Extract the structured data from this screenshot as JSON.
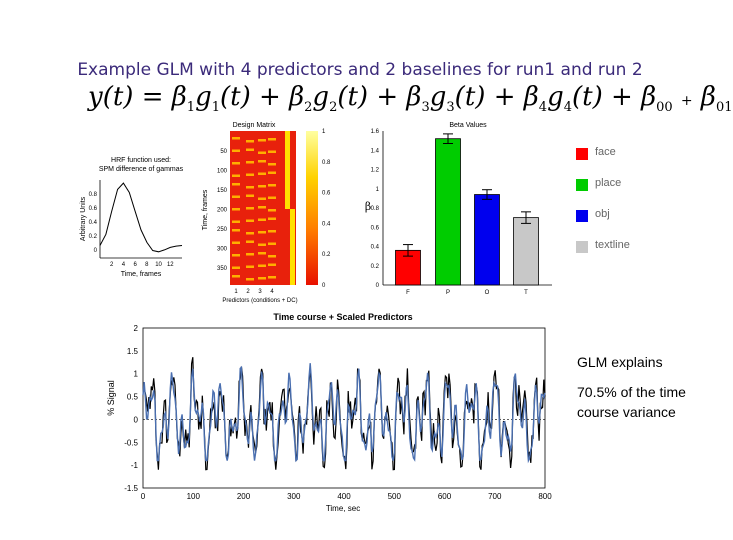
{
  "slide": {
    "title": "Example GLM with 4 predictors and 2 baselines for run1 and run 2",
    "equation": {
      "lhs": "y(t)",
      "equals": "=",
      "plus": "+",
      "terms": [
        {
          "beta": "β",
          "beta_sub": "1",
          "g": "g",
          "g_sub": "1",
          "arg": "(t)"
        },
        {
          "beta": "β",
          "beta_sub": "2",
          "g": "g",
          "g_sub": "2",
          "arg": "(t)"
        },
        {
          "beta": "β",
          "beta_sub": "3",
          "g": "g",
          "g_sub": "3",
          "arg": "(t)"
        },
        {
          "beta": "β",
          "beta_sub": "4",
          "g": "g",
          "g_sub": "4",
          "arg": "(t)"
        }
      ],
      "baselines": [
        {
          "beta": "β",
          "beta_sub": "00"
        },
        {
          "beta": "β",
          "beta_sub": "01"
        }
      ]
    },
    "explains_line1": "GLM explains",
    "explains_line2": "70.5% of the time course variance"
  },
  "colors": {
    "title": "#3b2a7a",
    "face": "#ff0000",
    "place": "#00cc00",
    "obj": "#0000ee",
    "textline": "#c8c8c8",
    "signal": "#000000",
    "model": "#4a6fb0"
  },
  "chart_data": [
    {
      "type": "line",
      "title": "HRF function used: SPM difference of gammas",
      "xlabel": "Time, frames",
      "ylabel": "Arbitrary Units",
      "x": [
        0,
        1,
        2,
        3,
        4,
        5,
        6,
        7,
        8,
        9,
        10,
        11,
        12,
        13,
        14
      ],
      "values": [
        0,
        0.18,
        0.55,
        0.9,
        1.0,
        0.85,
        0.55,
        0.25,
        0.05,
        -0.08,
        -0.1,
        -0.07,
        -0.03,
        -0.01,
        0
      ],
      "xticks": [
        "2",
        "4",
        "6",
        "8",
        "10",
        "12"
      ],
      "yticks": [
        "0.8",
        "0.6",
        "0.4",
        "0.2",
        "0"
      ]
    },
    {
      "type": "heatmap",
      "title": "Design Matrix",
      "xlabel": "Predictors (conditions + DC)",
      "ylabel": "Time, frames",
      "xticks": [
        "1",
        "2",
        "3",
        "4"
      ],
      "yticks": [
        "50",
        "100",
        "150",
        "200",
        "250",
        "300",
        "350"
      ],
      "colorbar_ticks": [
        "1",
        "0.8",
        "0.6",
        "0.4",
        "0.2",
        "0"
      ]
    },
    {
      "type": "bar",
      "title": "Beta Values",
      "ylabel": "β",
      "categories": [
        "F",
        "P",
        "O",
        "T"
      ],
      "values": [
        0.36,
        1.52,
        0.94,
        0.7
      ],
      "errors": [
        0.06,
        0.05,
        0.05,
        0.06
      ],
      "ylim": [
        0,
        1.6
      ],
      "yticks": [
        "0",
        "0.2",
        "0.4",
        "0.6",
        "0.8",
        "1",
        "1.2",
        "1.4",
        "1.6"
      ],
      "legend": [
        "face",
        "place",
        "obj",
        "textline"
      ],
      "legend_position": "right"
    },
    {
      "type": "line",
      "title": "Time course + Scaled Predictors",
      "xlabel": "Time, sec",
      "ylabel": "% Signal",
      "xlim": [
        0,
        800
      ],
      "ylim": [
        -1.5,
        2
      ],
      "xticks": [
        0,
        100,
        200,
        300,
        400,
        500,
        600,
        700,
        800
      ],
      "yticks": [
        2,
        1.5,
        1,
        0.5,
        0,
        -0.5,
        -1,
        -1.5
      ],
      "series": [
        {
          "role": "signal",
          "samples": 340
        },
        {
          "role": "model",
          "samples": 340
        }
      ]
    }
  ]
}
